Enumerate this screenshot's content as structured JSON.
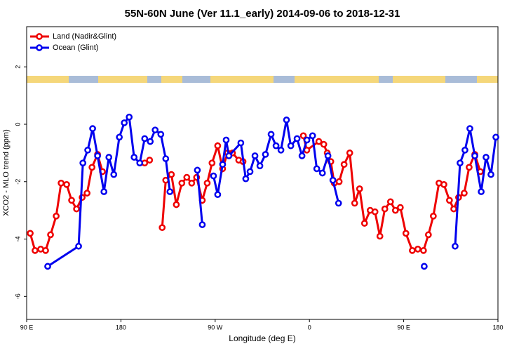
{
  "chart_data": {
    "type": "line",
    "title": "55N-60N June (Ver 11.1_early)   2014-09-06 to 2018-12-31",
    "x_label": "Longitude (deg E)",
    "y_label": "XCO2 - MLO trend (ppm)",
    "xlim": [
      90,
      540
    ],
    "xticks": [
      {
        "value": 90,
        "label": "90 E"
      },
      180,
      {
        "value": 270,
        "label": "90 W"
      },
      0,
      {
        "value": 450,
        "label": "90 E"
      },
      {
        "value": 540,
        "label": "180"
      }
    ],
    "ylim": [
      -6.8,
      3.4
    ],
    "yticks": [
      -6,
      -4,
      -2,
      0,
      2
    ],
    "legend": "top-left",
    "series": [
      {
        "name": "Land (Nadir&Glint)",
        "color": "#ee0000",
        "x": [
          93.4,
          98,
          103.4,
          108.1,
          112.8,
          118.2,
          122.9,
          128.2,
          132.9,
          137.6,
          143,
          147.7,
          152.4,
          157.7,
          162.4,
          null,
          202.7,
          207.4,
          null,
          219.4,
          222.8,
          228.2,
          232.9,
          238.2,
          242.9,
          247.6,
          252.3,
          257.7,
          262.4,
          267,
          272.4,
          277.1,
          281.8,
          286.5,
          292.5,
          296.6,
          null,
          354.2,
          357.5,
          369,
          373.7,
          377,
          380.4,
          383.7,
          388.4,
          393.1,
          398.5,
          403.2,
          407.9,
          412.6,
          418,
          422.6,
          427.3,
          432,
          437.4,
          442.1,
          446.8,
          452.1,
          458.2,
          463.5,
          468.9,
          473.6,
          478.3,
          483.7,
          488.4,
          493.7,
          497.8,
          502.4,
          507.8,
          512.5,
          517.9,
          523.2
        ],
        "values": [
          -3.8,
          -4.4,
          -4.35,
          -4.4,
          -3.85,
          -3.2,
          -2.05,
          -2.1,
          -2.65,
          -2.95,
          -2.55,
          -2.4,
          -1.5,
          -1.05,
          -1.65,
          null,
          -1.35,
          -1.25,
          null,
          -3.6,
          -1.95,
          -1.75,
          -2.8,
          -2.05,
          -1.85,
          -2.05,
          -1.85,
          -2.65,
          -2.05,
          -1.35,
          -0.75,
          -1.55,
          -1,
          -1,
          -1.25,
          -1.3,
          null,
          -0.4,
          -0.9,
          -0.6,
          -0.7,
          -1,
          -1.3,
          -2.05,
          -2,
          -1.4,
          -1,
          -2.75,
          -2.25,
          -3.45,
          -3,
          -3.05,
          -3.9,
          -2.95,
          -2.7,
          -3,
          -2.9,
          -3.8,
          -4.4,
          -4.35,
          -4.4,
          -3.85,
          -3.2,
          -2.05,
          -2.1,
          -2.65,
          -2.95,
          -2.55,
          -2.4,
          -1.5,
          -1.05,
          -1.65
        ]
      },
      {
        "name": "Ocean (Glint)",
        "color": "#0000ee",
        "x": [
          110.1,
          139.6,
          143.7,
          148.3,
          153,
          157.7,
          163.8,
          168.5,
          173.2,
          178.5,
          183.2,
          187.9,
          192.6,
          198,
          202.7,
          208,
          212.7,
          218.1,
          222.8,
          226.8,
          null,
          253,
          257.7,
          null,
          268.4,
          272.4,
          277.1,
          280.5,
          283.1,
          294.5,
          299.2,
          303.3,
          308,
          312.7,
          318,
          323.4,
          328.1,
          332.8,
          338.1,
          342.2,
          348.2,
          352.9,
          357.6,
          363,
          367,
          372.4,
          377.7,
          382.4,
          387.8,
          null,
          469.6,
          null,
          499.1,
          503.8,
          508.5,
          513.2,
          517.9,
          524,
          528.6,
          533.3,
          538
        ],
        "values": [
          -4.95,
          -4.25,
          -1.35,
          -0.9,
          -0.15,
          -1.1,
          -2.35,
          -1.15,
          -1.75,
          -0.45,
          0.05,
          0.25,
          -1.15,
          -1.35,
          -0.5,
          -0.6,
          -0.2,
          -0.35,
          -1.2,
          -2.35,
          null,
          -1.6,
          -3.5,
          null,
          -1.8,
          -2.45,
          -1.4,
          -0.55,
          -1.1,
          -0.65,
          -1.9,
          -1.65,
          -1.1,
          -1.45,
          -1.05,
          -0.35,
          -0.75,
          -0.9,
          0.15,
          -0.75,
          -0.5,
          -1.1,
          -0.55,
          -0.4,
          -1.55,
          -1.7,
          -1.1,
          -1.95,
          -2.75,
          null,
          -4.95,
          null,
          -4.25,
          -1.35,
          -0.9,
          -0.15,
          -1.1,
          -2.35,
          -1.15,
          -1.75,
          -0.45
        ]
      }
    ]
  }
}
